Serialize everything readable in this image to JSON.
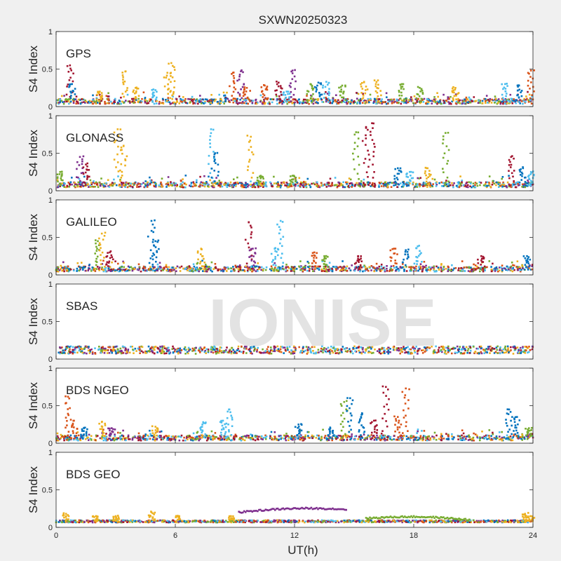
{
  "chart_data": {
    "type": "scatter",
    "title": "SXWN20250323",
    "watermark": "IONISE",
    "xlabel": "UT(h)",
    "xlim": [
      0,
      24
    ],
    "xticks": [
      0,
      6,
      12,
      18,
      24
    ],
    "ylabel": "S4 Index",
    "ylim": [
      0,
      1
    ],
    "yticks": [
      0,
      0.5,
      1
    ],
    "grid": false,
    "colors": [
      "#0072BD",
      "#D95319",
      "#EDB120",
      "#7E2F8E",
      "#77AC30",
      "#4DBEEE",
      "#A2142F"
    ],
    "panels": [
      {
        "name": "GPS",
        "baseline": 0.07,
        "spikes": [
          [
            0.7,
            0.55,
            6
          ],
          [
            0.8,
            0.3,
            0
          ],
          [
            2.2,
            0.2,
            2
          ],
          [
            3.5,
            0.47,
            2
          ],
          [
            4.0,
            0.25,
            2
          ],
          [
            5.0,
            0.22,
            5
          ],
          [
            5.6,
            0.45,
            2
          ],
          [
            5.8,
            0.58,
            2
          ],
          [
            8.9,
            0.45,
            1
          ],
          [
            9.3,
            0.47,
            3
          ],
          [
            9.6,
            0.25,
            1
          ],
          [
            10.5,
            0.28,
            1
          ],
          [
            11.2,
            0.32,
            6
          ],
          [
            11.6,
            0.2,
            5
          ],
          [
            11.9,
            0.48,
            3
          ],
          [
            12.8,
            0.3,
            4
          ],
          [
            13.2,
            0.32,
            0
          ],
          [
            13.6,
            0.33,
            5
          ],
          [
            14.4,
            0.28,
            4
          ],
          [
            15.5,
            0.33,
            2
          ],
          [
            16.2,
            0.35,
            2
          ],
          [
            17.4,
            0.3,
            4
          ],
          [
            18.3,
            0.25,
            4
          ],
          [
            20.1,
            0.25,
            2
          ],
          [
            22.6,
            0.3,
            5
          ],
          [
            23.3,
            0.28,
            0
          ],
          [
            23.9,
            0.48,
            1
          ]
        ]
      },
      {
        "name": "GLONASS",
        "baseline": 0.08,
        "spikes": [
          [
            0.2,
            0.25,
            4
          ],
          [
            1.2,
            0.45,
            3
          ],
          [
            1.5,
            0.35,
            6
          ],
          [
            3.1,
            0.82,
            2
          ],
          [
            3.4,
            0.6,
            2
          ],
          [
            7.8,
            0.82,
            5
          ],
          [
            8.0,
            0.5,
            0
          ],
          [
            9.8,
            0.72,
            2
          ],
          [
            10.3,
            0.2,
            4
          ],
          [
            11.9,
            0.2,
            4
          ],
          [
            15.1,
            0.78,
            4
          ],
          [
            15.6,
            0.85,
            6
          ],
          [
            15.9,
            0.9,
            6
          ],
          [
            17.2,
            0.3,
            0
          ],
          [
            17.8,
            0.25,
            5
          ],
          [
            18.7,
            0.3,
            2
          ],
          [
            19.6,
            0.77,
            4
          ],
          [
            22.9,
            0.45,
            6
          ],
          [
            23.5,
            0.3,
            0
          ],
          [
            23.9,
            0.25,
            5
          ]
        ]
      },
      {
        "name": "GALILEO",
        "baseline": 0.08,
        "spikes": [
          [
            2.1,
            0.45,
            4
          ],
          [
            2.3,
            0.55,
            2
          ],
          [
            2.7,
            0.3,
            6
          ],
          [
            4.8,
            0.72,
            0
          ],
          [
            5.0,
            0.45,
            0
          ],
          [
            7.3,
            0.35,
            2
          ],
          [
            9.7,
            0.7,
            6
          ],
          [
            9.9,
            0.35,
            3
          ],
          [
            11.3,
            0.72,
            5
          ],
          [
            11.0,
            0.35,
            5
          ],
          [
            13.0,
            0.3,
            1
          ],
          [
            13.5,
            0.25,
            4
          ],
          [
            15.2,
            0.25,
            6
          ],
          [
            17.0,
            0.35,
            1
          ],
          [
            17.6,
            0.33,
            0
          ],
          [
            18.2,
            0.38,
            5
          ],
          [
            21.4,
            0.25,
            6
          ],
          [
            23.7,
            0.25,
            0
          ]
        ]
      },
      {
        "name": "SBAS",
        "baseline": 0.12,
        "spikes": []
      },
      {
        "name": "BDS NGEO",
        "baseline": 0.07,
        "spikes": [
          [
            0.6,
            0.62,
            1
          ],
          [
            0.9,
            0.3,
            1
          ],
          [
            1.4,
            0.2,
            0
          ],
          [
            2.3,
            0.28,
            2
          ],
          [
            2.8,
            0.2,
            3
          ],
          [
            5.0,
            0.22,
            2
          ],
          [
            7.4,
            0.28,
            5
          ],
          [
            8.7,
            0.45,
            5
          ],
          [
            8.4,
            0.3,
            5
          ],
          [
            12.2,
            0.25,
            0
          ],
          [
            13.8,
            0.2,
            0
          ],
          [
            14.5,
            0.55,
            4
          ],
          [
            14.8,
            0.6,
            0
          ],
          [
            15.4,
            0.4,
            0
          ],
          [
            16.0,
            0.3,
            6
          ],
          [
            16.6,
            0.75,
            6
          ],
          [
            17.2,
            0.35,
            1
          ],
          [
            17.6,
            0.73,
            1
          ],
          [
            22.8,
            0.45,
            0
          ],
          [
            23.2,
            0.35,
            0
          ],
          [
            23.8,
            0.2,
            4
          ]
        ]
      },
      {
        "name": "BDS GEO",
        "baseline": 0.08,
        "spikes": [
          [
            0.5,
            0.18,
            2
          ],
          [
            2.0,
            0.15,
            2
          ],
          [
            3.0,
            0.15,
            2
          ],
          [
            4.8,
            0.2,
            2
          ],
          [
            6.2,
            0.15,
            2
          ],
          [
            8.8,
            0.15,
            2
          ],
          [
            23.6,
            0.18,
            2
          ],
          [
            23.9,
            0.15,
            2
          ]
        ],
        "arcs": [
          {
            "x": [
              9.2,
              14.6
            ],
            "y": [
              0.2,
              0.24
            ],
            "color": 3
          },
          {
            "x": [
              15.6,
              20.8
            ],
            "y": [
              0.12,
              0.1
            ],
            "color": 4
          }
        ]
      }
    ]
  }
}
